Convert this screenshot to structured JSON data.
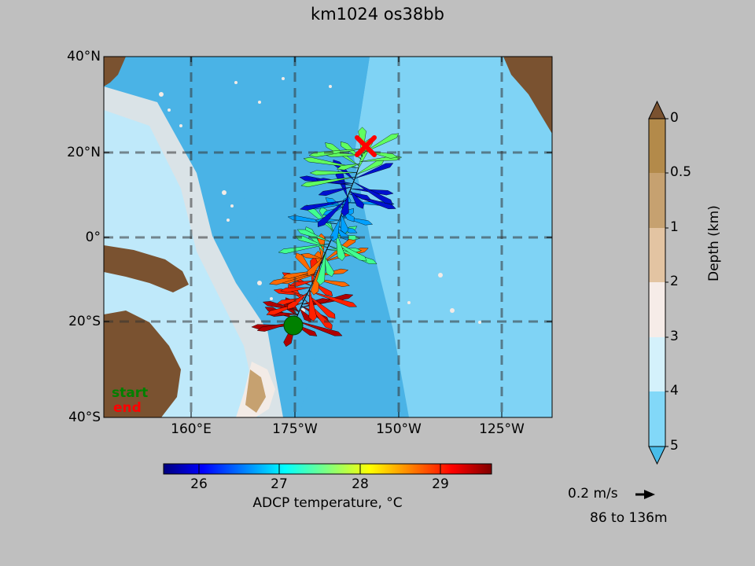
{
  "title": "km1024 os38bb",
  "map": {
    "lat_labels": [
      "40°N",
      "20°N",
      "0°",
      "20°S",
      "40°S"
    ],
    "lon_labels": [
      "160°E",
      "175°W",
      "150°W",
      "125°W"
    ],
    "legend": {
      "start": "start",
      "end": "end"
    },
    "colors": {
      "land": "#7a5230",
      "deep_ocean": "#4ab3e6",
      "mid_ocean": "#7fd3f5",
      "shelf": "#f3ebe6",
      "start_marker": "#008000",
      "end_marker": "#ff0000"
    }
  },
  "colorbar_temperature": {
    "label": "ADCP temperature, °C",
    "ticks": [
      "26",
      "27",
      "28",
      "29"
    ],
    "colormap": "jet"
  },
  "colorbar_depth": {
    "label": "Depth (km)",
    "ticks": [
      "0",
      "0.5",
      "1",
      "2",
      "3",
      "4",
      "5"
    ],
    "colors": [
      "#b38a4a",
      "#c6a170",
      "#e3c4a2",
      "#f6ece8",
      "#d4f1fb",
      "#82d8f8",
      "#49bce9"
    ]
  },
  "scale": {
    "speed_label": "0.2 m/s",
    "depth_range": "86 to 136m"
  }
}
